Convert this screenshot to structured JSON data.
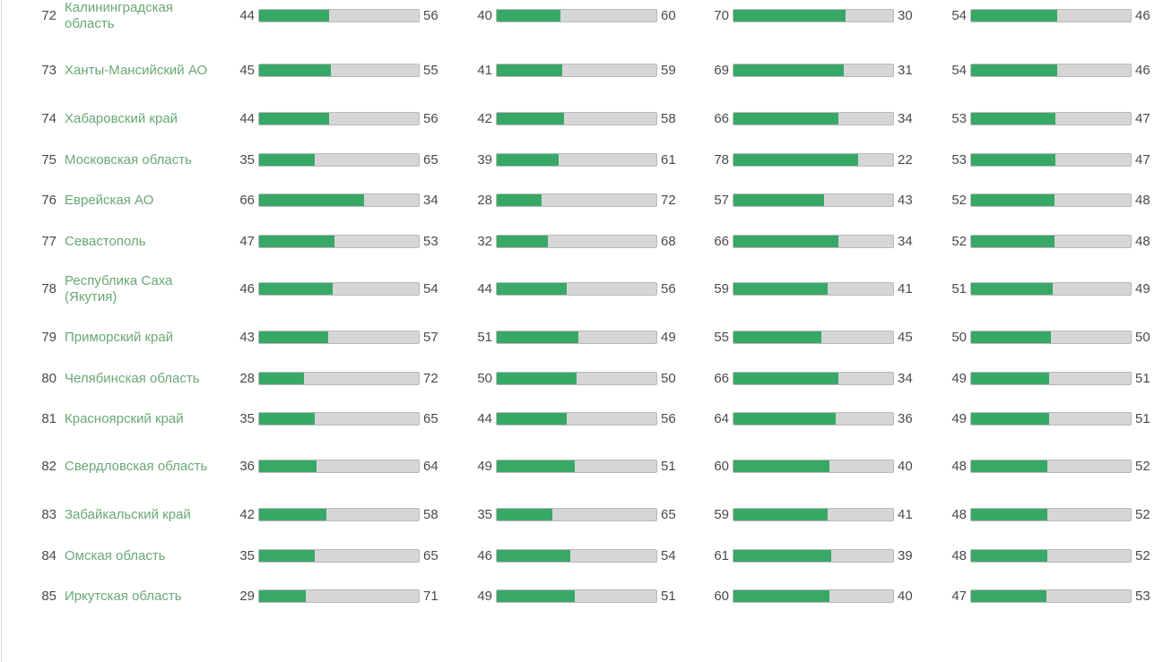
{
  "colors": {
    "bar_fill": "#38a867",
    "bar_track": "#d6d6d6",
    "region_link": "#6aa876"
  },
  "rows": [
    {
      "rank": "72",
      "region": "Калининградская область",
      "metrics": [
        [
          44,
          56
        ],
        [
          40,
          60
        ],
        [
          70,
          30
        ],
        [
          54,
          46
        ]
      ]
    },
    {
      "rank": "73",
      "region": "Ханты-Мансийский АО",
      "metrics": [
        [
          45,
          55
        ],
        [
          41,
          59
        ],
        [
          69,
          31
        ],
        [
          54,
          46
        ]
      ]
    },
    {
      "rank": "74",
      "region": "Хабаровский край",
      "metrics": [
        [
          44,
          56
        ],
        [
          42,
          58
        ],
        [
          66,
          34
        ],
        [
          53,
          47
        ]
      ]
    },
    {
      "rank": "75",
      "region": "Московская область",
      "metrics": [
        [
          35,
          65
        ],
        [
          39,
          61
        ],
        [
          78,
          22
        ],
        [
          53,
          47
        ]
      ]
    },
    {
      "rank": "76",
      "region": "Еврейская АО",
      "metrics": [
        [
          66,
          34
        ],
        [
          28,
          72
        ],
        [
          57,
          43
        ],
        [
          52,
          48
        ]
      ]
    },
    {
      "rank": "77",
      "region": "Севастополь",
      "metrics": [
        [
          47,
          53
        ],
        [
          32,
          68
        ],
        [
          66,
          34
        ],
        [
          52,
          48
        ]
      ]
    },
    {
      "rank": "78",
      "region": "Республика Саха (Якутия)",
      "metrics": [
        [
          46,
          54
        ],
        [
          44,
          56
        ],
        [
          59,
          41
        ],
        [
          51,
          49
        ]
      ]
    },
    {
      "rank": "79",
      "region": "Приморский край",
      "metrics": [
        [
          43,
          57
        ],
        [
          51,
          49
        ],
        [
          55,
          45
        ],
        [
          50,
          50
        ]
      ]
    },
    {
      "rank": "80",
      "region": "Челябинская область",
      "metrics": [
        [
          28,
          72
        ],
        [
          50,
          50
        ],
        [
          66,
          34
        ],
        [
          49,
          51
        ]
      ]
    },
    {
      "rank": "81",
      "region": "Красноярский край",
      "metrics": [
        [
          35,
          65
        ],
        [
          44,
          56
        ],
        [
          64,
          36
        ],
        [
          49,
          51
        ]
      ]
    },
    {
      "rank": "82",
      "region": "Свердловская область",
      "metrics": [
        [
          36,
          64
        ],
        [
          49,
          51
        ],
        [
          60,
          40
        ],
        [
          48,
          52
        ]
      ]
    },
    {
      "rank": "83",
      "region": "Забайкальский край",
      "metrics": [
        [
          42,
          58
        ],
        [
          35,
          65
        ],
        [
          59,
          41
        ],
        [
          48,
          52
        ]
      ]
    },
    {
      "rank": "84",
      "region": "Омская область",
      "metrics": [
        [
          35,
          65
        ],
        [
          46,
          54
        ],
        [
          61,
          39
        ],
        [
          48,
          52
        ]
      ]
    },
    {
      "rank": "85",
      "region": "Иркутская область",
      "metrics": [
        [
          29,
          71
        ],
        [
          49,
          51
        ],
        [
          60,
          40
        ],
        [
          47,
          53
        ]
      ]
    }
  ]
}
